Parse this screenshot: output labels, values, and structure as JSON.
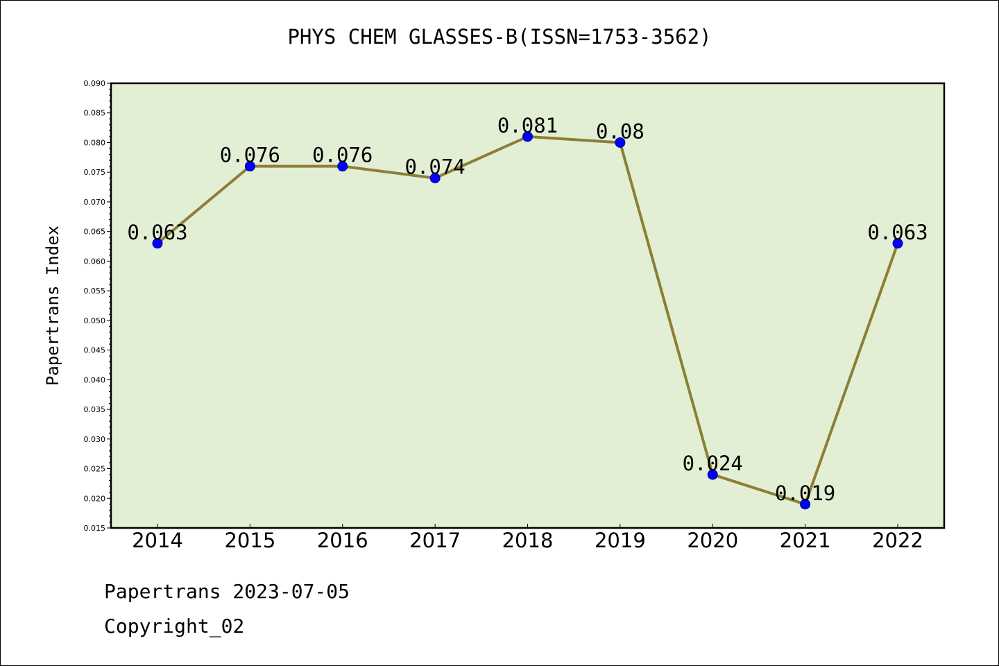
{
  "chart_data": {
    "type": "line",
    "title": "PHYS CHEM GLASSES-B(ISSN=1753-3562)",
    "xlabel": "",
    "ylabel": "Papertrans Index",
    "categories": [
      "2014",
      "2015",
      "2016",
      "2017",
      "2018",
      "2019",
      "2020",
      "2021",
      "2022"
    ],
    "values": [
      0.063,
      0.076,
      0.076,
      0.074,
      0.081,
      0.08,
      0.024,
      0.019,
      0.063
    ],
    "data_labels": [
      "0.063",
      "0.076",
      "0.076",
      "0.074",
      "0.081",
      "0.08",
      "0.024",
      "0.019",
      "0.063"
    ],
    "ylim": [
      0.015,
      0.09
    ],
    "yticks": [
      "0.015",
      "0.020",
      "0.025",
      "0.030",
      "0.035",
      "0.040",
      "0.045",
      "0.050",
      "0.055",
      "0.060",
      "0.065",
      "0.070",
      "0.075",
      "0.080",
      "0.085",
      "0.090"
    ],
    "grid": false,
    "legend": "none",
    "colors": {
      "plot_background": "#e2efd5",
      "line": "#8c7f35",
      "marker": "#0000ff"
    }
  },
  "footer": {
    "line1": "Papertrans 2023-07-05",
    "line2": "Copyright_02"
  }
}
